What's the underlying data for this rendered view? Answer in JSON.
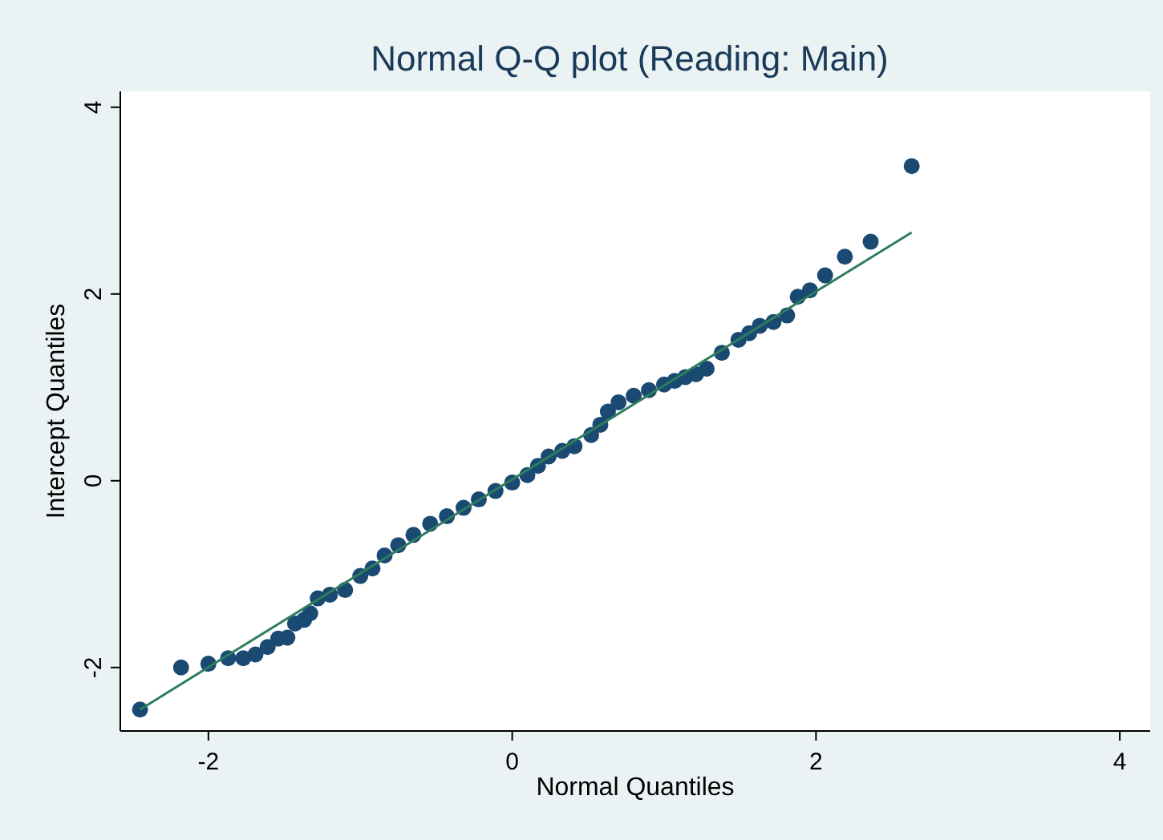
{
  "chart_data": {
    "type": "scatter",
    "title": "Normal Q-Q plot (Reading: Main)",
    "xlabel": "Normal Quantiles",
    "ylabel": "Intercept Quantiles",
    "xlim": [
      -2.58,
      4.2
    ],
    "ylim": [
      -2.68,
      4.17
    ],
    "xticks": [
      -2,
      0,
      2,
      4
    ],
    "yticks": [
      -2,
      0,
      2,
      4
    ],
    "grid": false,
    "series": [
      {
        "type": "scatter",
        "color": "#1a4a72",
        "marker": "circle",
        "x": [
          -2.45,
          -2.18,
          -2.0,
          -1.87,
          -1.77,
          -1.69,
          -1.61,
          -1.54,
          -1.48,
          -1.43,
          -1.37,
          -1.33,
          -1.28,
          -1.2,
          -1.1,
          -1.0,
          -0.92,
          -0.84,
          -0.75,
          -0.65,
          -0.54,
          -0.43,
          -0.32,
          -0.22,
          -0.11,
          0.0,
          0.1,
          0.17,
          0.24,
          0.33,
          0.41,
          0.52,
          0.58,
          0.63,
          0.7,
          0.8,
          0.9,
          1.0,
          1.07,
          1.14,
          1.21,
          1.28,
          1.38,
          1.49,
          1.56,
          1.63,
          1.72,
          1.81,
          1.88,
          1.96,
          2.06,
          2.19,
          2.36,
          2.63
        ],
        "values": [
          -2.45,
          -2.0,
          -1.96,
          -1.9,
          -1.9,
          -1.86,
          -1.78,
          -1.69,
          -1.68,
          -1.53,
          -1.49,
          -1.42,
          -1.26,
          -1.22,
          -1.17,
          -1.02,
          -0.94,
          -0.8,
          -0.69,
          -0.58,
          -0.46,
          -0.38,
          -0.29,
          -0.2,
          -0.11,
          -0.02,
          0.06,
          0.16,
          0.26,
          0.32,
          0.37,
          0.49,
          0.6,
          0.74,
          0.84,
          0.91,
          0.97,
          1.03,
          1.07,
          1.11,
          1.14,
          1.2,
          1.37,
          1.51,
          1.58,
          1.66,
          1.7,
          1.77,
          1.97,
          2.04,
          2.2,
          2.4,
          2.56,
          3.37
        ]
      },
      {
        "type": "line",
        "color": "#2e7d5e",
        "x": [
          -2.45,
          2.63
        ],
        "values": [
          -2.45,
          2.66
        ]
      }
    ]
  }
}
